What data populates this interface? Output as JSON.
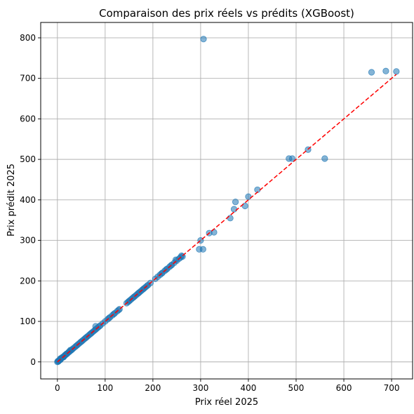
{
  "chart_data": {
    "type": "scatter",
    "title": "Comparaison des prix réels vs prédits (XGBoost)",
    "xlabel": "Prix réel 2025",
    "ylabel": "Prix prédit 2025",
    "xlim": [
      -35,
      744
    ],
    "ylim": [
      -42,
      838
    ],
    "xticks": [
      0,
      100,
      200,
      300,
      400,
      500,
      600,
      700
    ],
    "yticks": [
      0,
      100,
      200,
      300,
      400,
      500,
      600,
      700,
      800
    ],
    "grid": true,
    "reference_line": {
      "from": [
        0,
        0
      ],
      "to": [
        710,
        710
      ],
      "style": "dashed",
      "color": "#ff0000"
    },
    "point_color": "#1f77b4",
    "series": [
      {
        "x": [
          0,
          1,
          2,
          3,
          4,
          5,
          6,
          7,
          8,
          10,
          12,
          14,
          15,
          18,
          20,
          22,
          25,
          28,
          30,
          32,
          35,
          38,
          40,
          42,
          45,
          48,
          50,
          52,
          55,
          58,
          60,
          62,
          65,
          68,
          70,
          72,
          75,
          78,
          80,
          82,
          85,
          88,
          90,
          95,
          100,
          105,
          108,
          110,
          115,
          118,
          120,
          125,
          128,
          130,
          145,
          148,
          150,
          152,
          155,
          158,
          160,
          162,
          165,
          168,
          170,
          172,
          175,
          178,
          180,
          182,
          185,
          188,
          190,
          195,
          205,
          210,
          215,
          218,
          220,
          225,
          228,
          230,
          235,
          238,
          240,
          245,
          248,
          250,
          255,
          258,
          260,
          262,
          297,
          300,
          305,
          318,
          328,
          362,
          370,
          373,
          393,
          400,
          419,
          485,
          492,
          525,
          560,
          306,
          658,
          688,
          710,
          6,
          9,
          11,
          13,
          16,
          19,
          24,
          27,
          80
        ],
        "y": [
          0,
          2,
          1,
          3,
          4,
          5,
          5,
          7,
          9,
          10,
          12,
          14,
          15,
          18,
          20,
          22,
          25,
          28,
          30,
          32,
          35,
          38,
          40,
          42,
          45,
          48,
          50,
          52,
          55,
          58,
          60,
          62,
          65,
          68,
          70,
          72,
          75,
          78,
          80,
          82,
          85,
          88,
          90,
          95,
          100,
          105,
          108,
          110,
          115,
          118,
          120,
          125,
          128,
          130,
          145,
          148,
          150,
          152,
          155,
          158,
          160,
          162,
          165,
          168,
          170,
          172,
          175,
          178,
          180,
          182,
          185,
          188,
          190,
          195,
          205,
          210,
          215,
          218,
          220,
          225,
          228,
          230,
          235,
          238,
          240,
          245,
          252,
          250,
          255,
          258,
          262,
          260,
          278,
          300,
          278,
          318,
          320,
          355,
          377,
          395,
          385,
          408,
          425,
          502,
          502,
          524,
          502,
          797,
          715,
          718,
          717,
          8,
          10,
          12,
          12,
          17,
          20,
          25,
          29,
          88
        ]
      }
    ]
  }
}
